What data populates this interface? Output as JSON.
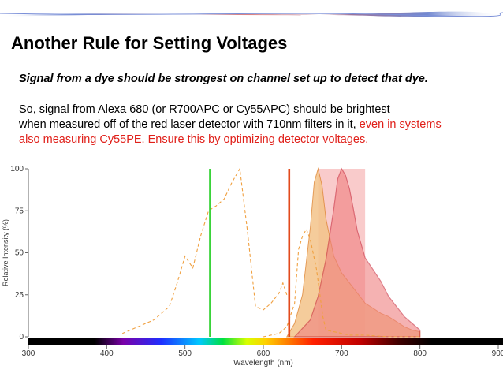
{
  "slide": {
    "title": "Another Rule for Setting Voltages",
    "lead": "Signal from a dye should be strongest on channel set up to detect that dye.",
    "body_line1": "So, signal from Alexa 680 (or R700APC or Cy55APC) should be brightest",
    "body_line2_plain": "when measured off of the red laser detector with 710nm filters in it, ",
    "body_line2_red": "even in systems",
    "body_line3_red": "also measuring Cy55PE.  Ensure this by optimizing detector voltages."
  },
  "colors": {
    "accent_red": "#e0201a",
    "laser_green": "#3ad33a",
    "laser_red": "#e24a1c",
    "excitation_dashed": "#f0a040",
    "emission_orange_fill": "#f4c48a",
    "emission_red_fill": "#f08080",
    "filter_band": "#f4a0a0"
  },
  "chart_data": {
    "type": "line",
    "xlabel": "Wavelength (nm)",
    "ylabel": "Relative Intensity (%)",
    "xlim": [
      300,
      900
    ],
    "ylim": [
      0,
      100
    ],
    "x_ticks": [
      300,
      400,
      500,
      600,
      700,
      800,
      900
    ],
    "y_ticks": [
      0,
      25,
      50,
      75,
      100
    ],
    "grid": false,
    "lasers": [
      {
        "wavelength": 532,
        "color": "#3ad33a"
      },
      {
        "wavelength": 633,
        "color": "#e24a1c"
      }
    ],
    "filter_band": {
      "from": 670,
      "to": 730
    },
    "series": [
      {
        "style": "dashed-excitation-1",
        "x": [
          420,
          440,
          460,
          480,
          490,
          500,
          510,
          520,
          530,
          540,
          550,
          560,
          570,
          580,
          590,
          600,
          610,
          620,
          625,
          630
        ],
        "y": [
          2,
          6,
          10,
          18,
          32,
          48,
          41,
          60,
          75,
          78,
          82,
          92,
          100,
          62,
          18,
          16,
          20,
          26,
          32,
          25
        ]
      },
      {
        "style": "dashed-excitation-2",
        "x": [
          600,
          620,
          630,
          640,
          645,
          650,
          655,
          660,
          668,
          672,
          676,
          680,
          690,
          700,
          710,
          720,
          730,
          760,
          790,
          800
        ],
        "y": [
          0,
          2,
          6,
          20,
          52,
          60,
          64,
          58,
          40,
          26,
          12,
          4,
          3,
          2,
          1,
          1,
          1,
          0,
          0,
          0
        ]
      },
      {
        "style": "emission-orange",
        "x": [
          630,
          640,
          650,
          660,
          665,
          670,
          675,
          680,
          690,
          700,
          710,
          720,
          730,
          740,
          750,
          760,
          770,
          780,
          790,
          800
        ],
        "y": [
          0,
          8,
          25,
          65,
          92,
          100,
          90,
          70,
          48,
          38,
          32,
          26,
          20,
          17,
          14,
          12,
          9,
          6,
          4,
          3
        ]
      },
      {
        "style": "emission-red",
        "x": [
          640,
          660,
          670,
          680,
          690,
          695,
          700,
          705,
          710,
          715,
          720,
          730,
          740,
          750,
          760,
          770,
          780,
          790,
          800
        ],
        "y": [
          0,
          10,
          24,
          46,
          76,
          94,
          100,
          96,
          88,
          76,
          63,
          47,
          40,
          33,
          24,
          18,
          12,
          8,
          4
        ]
      }
    ]
  }
}
